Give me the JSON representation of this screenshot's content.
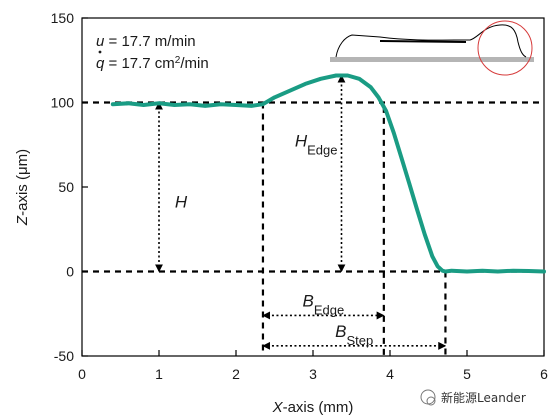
{
  "chart_data": {
    "type": "line",
    "xlabel_var": "X",
    "xlabel_rest": "-axis (mm)",
    "ylabel_var": "Z",
    "ylabel_rest": "-axis (μm)",
    "xlim": [
      0,
      6
    ],
    "ylim": [
      -50,
      150
    ],
    "x_ticks": [
      0,
      1,
      2,
      3,
      4,
      5,
      6
    ],
    "y_ticks": [
      -50,
      0,
      50,
      100,
      150
    ],
    "grid": false,
    "series": [
      {
        "color": "#1a9c84",
        "x": [
          0.4,
          0.6,
          0.8,
          1.0,
          1.2,
          1.4,
          1.6,
          1.8,
          2.0,
          2.2,
          2.35,
          2.5,
          2.7,
          2.9,
          3.1,
          3.3,
          3.45,
          3.6,
          3.75,
          3.85,
          3.95,
          4.05,
          4.15,
          4.25,
          4.35,
          4.45,
          4.55,
          4.62,
          4.68,
          4.72,
          4.8,
          5.0,
          5.2,
          5.4,
          5.6,
          5.8,
          6.0
        ],
        "y": [
          99,
          99.5,
          98.5,
          99.5,
          98.5,
          99,
          98,
          99,
          98.5,
          98,
          99,
          103,
          107,
          111,
          114,
          116,
          116,
          114,
          109,
          103,
          95,
          82,
          67,
          52,
          37,
          22,
          9,
          3,
          0.5,
          0,
          0.5,
          0,
          0.5,
          0,
          0.5,
          0.3,
          0
        ]
      }
    ],
    "reference_lines": {
      "horizontal_y": [
        100,
        0
      ],
      "vertical_x": [
        2.35,
        3.92,
        4.72
      ]
    },
    "dimension_arrows": [
      {
        "label_main": "H",
        "label_sub": "",
        "orientation": "vertical",
        "x": 1.0,
        "from": 100,
        "to": 0
      },
      {
        "label_main": "H",
        "label_sub": "Edge",
        "orientation": "vertical",
        "x": 3.37,
        "from": 116,
        "to": 0
      },
      {
        "label_main": "B",
        "label_sub": "Edge",
        "orientation": "horizontal",
        "y": -26,
        "from": 2.35,
        "to": 3.92
      },
      {
        "label_main": "B",
        "label_sub": "Step",
        "orientation": "horizontal",
        "y": -44,
        "from": 2.35,
        "to": 4.72
      }
    ],
    "parameters": {
      "u_var": "u",
      "u_value": " = 17.7 m/min",
      "q_var": "q",
      "q_value": " = 17.7 cm",
      "q_exp": "2",
      "q_unit": "/min"
    }
  },
  "watermark": "新能源Leander"
}
